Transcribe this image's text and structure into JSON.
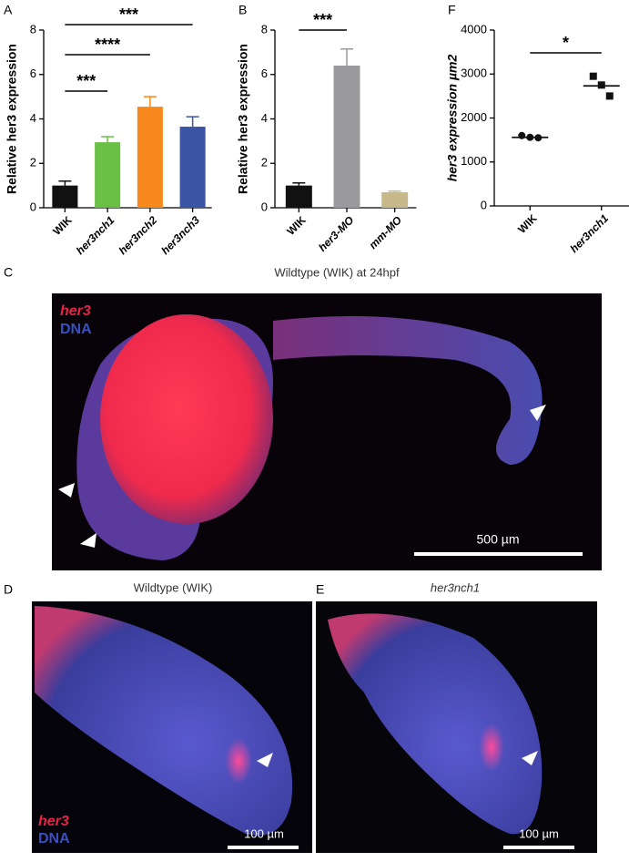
{
  "panel_labels": [
    "A",
    "B",
    "C",
    "D",
    "E",
    "F"
  ],
  "chart_data": [
    {
      "type": "bar",
      "ylabel": "Relative her3 expression",
      "categories": [
        "WIK",
        "her3nch1",
        "her3nch2",
        "her3nch3"
      ],
      "values": [
        1.0,
        2.95,
        4.55,
        3.65
      ],
      "errors": [
        0.2,
        0.25,
        0.45,
        0.45
      ],
      "colors": [
        "#111111",
        "#6abf45",
        "#f7891f",
        "#3a55a4"
      ],
      "ylim": [
        0,
        8
      ],
      "yticks": [
        0,
        2,
        4,
        6,
        8
      ],
      "annotations": [
        {
          "text": "***",
          "between": [
            "WIK",
            "her3nch1"
          ]
        },
        {
          "text": "****",
          "between": [
            "WIK",
            "her3nch2"
          ]
        },
        {
          "text": "***",
          "between": [
            "WIK",
            "her3nch3"
          ]
        }
      ]
    },
    {
      "type": "bar",
      "ylabel": "Relative her3 expression",
      "categories": [
        "WIK",
        "her3-MO",
        "mm-MO"
      ],
      "values": [
        1.0,
        6.4,
        0.7
      ],
      "errors": [
        0.12,
        0.75,
        0.05
      ],
      "colors": [
        "#111111",
        "#9a9a9e",
        "#c8b98a"
      ],
      "ylim": [
        0,
        8
      ],
      "yticks": [
        0,
        2,
        4,
        6,
        8
      ],
      "annotations": [
        {
          "text": "***",
          "between": [
            "WIK",
            "her3-MO"
          ]
        }
      ]
    },
    {
      "type": "dot",
      "ylabel": "her3 expression µm2",
      "categories": [
        "WIK",
        "her3nch1"
      ],
      "values": [
        [
          1600,
          1560,
          1550
        ],
        [
          2950,
          2750,
          2500
        ]
      ],
      "means": [
        1560,
        2730
      ],
      "markers": [
        "circle",
        "square"
      ],
      "color": "#111111",
      "ylim": [
        0,
        4000
      ],
      "yticks": [
        0,
        1000,
        2000,
        3000,
        4000
      ],
      "annotations": [
        {
          "text": "*",
          "between": [
            "WIK",
            "her3nch1"
          ]
        }
      ]
    }
  ],
  "images": {
    "C": {
      "title": "Wildtype (WIK) at 24hpf",
      "legend": [
        "her3",
        "DNA"
      ],
      "scale": "500 µm"
    },
    "D": {
      "title": "Wildtype (WIK)",
      "legend": [
        "her3",
        "DNA"
      ],
      "scale": "100 µm"
    },
    "E": {
      "title": "her3nch1",
      "scale": "100 µm"
    }
  }
}
